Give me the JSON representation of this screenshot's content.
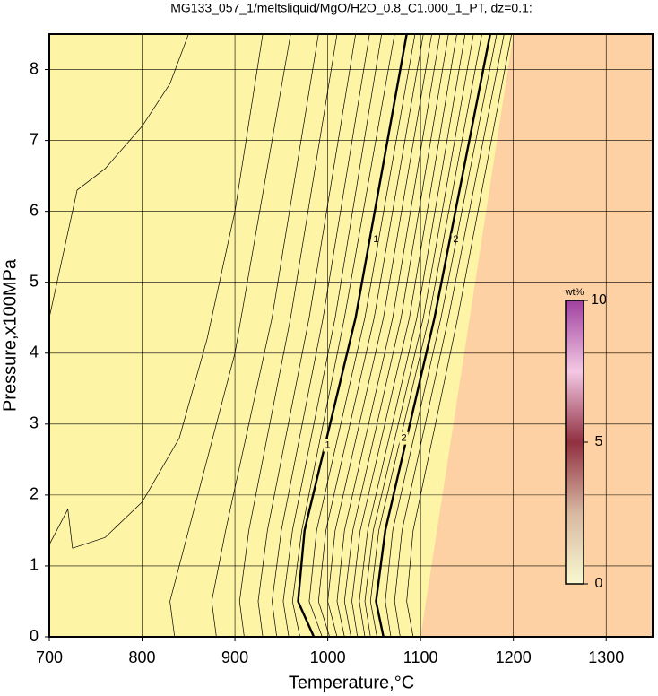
{
  "chart_data": {
    "type": "contour",
    "title": "MG133_057_1/meltsliquid/MgO/H2O_0.8_C1.000_1_PT, dz=0.1:",
    "xlabel": "Temperature,°C",
    "ylabel": "Pressure,x100MPa",
    "xlim": [
      700,
      1350
    ],
    "ylim": [
      0,
      8.5
    ],
    "xticks": [
      700,
      800,
      900,
      1000,
      1100,
      1200,
      1300
    ],
    "yticks": [
      0,
      1,
      2,
      3,
      4,
      5,
      6,
      7,
      8
    ],
    "grid": true,
    "background": "#fdf4a6",
    "region": {
      "color": "#fdd1a3",
      "x": [
        1100,
        1200,
        1350,
        1350
      ],
      "y": [
        0,
        8.5,
        8.5,
        0
      ]
    },
    "series": [
      {
        "level": 0.1,
        "x": [
          700,
          730,
          760,
          800,
          830,
          850
        ],
        "y": [
          4.5,
          6.3,
          6.6,
          7.2,
          7.8,
          8.5
        ]
      },
      {
        "level": 0.2,
        "x": [
          700,
          720,
          725,
          760,
          800,
          840,
          870,
          900,
          930
        ],
        "y": [
          1.3,
          1.8,
          1.25,
          1.4,
          1.9,
          2.8,
          4.2,
          6,
          8.5
        ]
      },
      {
        "level": 0.3,
        "x": [
          835,
          830,
          850,
          900,
          960
        ],
        "y": [
          0,
          0.5,
          1.5,
          4,
          8.5
        ]
      },
      {
        "level": 0.4,
        "x": [
          880,
          875,
          890,
          940,
          990
        ],
        "y": [
          0,
          0.5,
          1.5,
          4.5,
          8.5
        ]
      },
      {
        "level": 0.5,
        "x": [
          910,
          905,
          915,
          960,
          1010
        ],
        "y": [
          0,
          0.5,
          1.5,
          4.5,
          8.5
        ]
      },
      {
        "level": 0.6,
        "x": [
          930,
          925,
          935,
          980,
          1030
        ],
        "y": [
          0,
          0.5,
          1.5,
          4.5,
          8.5
        ]
      },
      {
        "level": 0.7,
        "x": [
          945,
          940,
          950,
          995,
          1045
        ],
        "y": [
          0,
          0.5,
          1.5,
          4.5,
          8.5
        ]
      },
      {
        "level": 0.8,
        "x": [
          958,
          952,
          962,
          1008,
          1058
        ],
        "y": [
          0,
          0.5,
          1.5,
          4.5,
          8.5
        ]
      },
      {
        "level": 0.9,
        "x": [
          970,
          962,
          972,
          1018,
          1072
        ],
        "y": [
          0,
          0.5,
          1.5,
          4.5,
          8.5
        ]
      },
      {
        "level": 1,
        "bold": true,
        "x": [
          985,
          968,
          975,
          1030,
          1085
        ],
        "y": [
          0,
          0.5,
          1.5,
          4.5,
          8.5
        ],
        "label_x": [
          1000,
          1052
        ],
        "label_y": [
          2.7,
          5.6
        ]
      },
      {
        "level": 1.1,
        "x": [
          994,
          980,
          988,
          1040,
          1094
        ],
        "y": [
          0,
          0.5,
          1.5,
          4.5,
          8.5
        ]
      },
      {
        "level": 1.2,
        "x": [
          1002,
          990,
          998,
          1050,
          1103
        ],
        "y": [
          0,
          0.5,
          1.5,
          4.5,
          8.5
        ]
      },
      {
        "level": 1.3,
        "x": [
          1010,
          1000,
          1008,
          1060,
          1112
        ],
        "y": [
          0,
          0.5,
          1.5,
          4.5,
          8.5
        ]
      },
      {
        "level": 1.4,
        "x": [
          1018,
          1010,
          1018,
          1070,
          1121
        ],
        "y": [
          0,
          0.5,
          1.5,
          4.5,
          8.5
        ]
      },
      {
        "level": 1.5,
        "x": [
          1025,
          1018,
          1027,
          1079,
          1130
        ],
        "y": [
          0,
          0.5,
          1.5,
          4.5,
          8.5
        ]
      },
      {
        "level": 1.6,
        "x": [
          1032,
          1026,
          1035,
          1088,
          1139
        ],
        "y": [
          0,
          0.5,
          1.5,
          4.5,
          8.5
        ]
      },
      {
        "level": 1.7,
        "x": [
          1040,
          1034,
          1043,
          1096,
          1148
        ],
        "y": [
          0,
          0.5,
          1.5,
          4.5,
          8.5
        ]
      },
      {
        "level": 1.8,
        "x": [
          1046,
          1040,
          1049,
          1103,
          1157
        ],
        "y": [
          0,
          0.5,
          1.5,
          4.5,
          8.5
        ]
      },
      {
        "level": 1.9,
        "x": [
          1053,
          1046,
          1055,
          1109,
          1166
        ],
        "y": [
          0,
          0.5,
          1.5,
          4.5,
          8.5
        ]
      },
      {
        "level": 2,
        "bold": true,
        "x": [
          1060,
          1052,
          1062,
          1115,
          1175
        ],
        "y": [
          0,
          0.5,
          1.5,
          4.5,
          8.5
        ],
        "label_x": [
          1082,
          1138
        ],
        "label_y": [
          2.8,
          5.6
        ]
      },
      {
        "level": 2.1,
        "x": [
          1068,
          1062,
          1070,
          1122,
          1182
        ],
        "y": [
          0,
          0.5,
          1.5,
          4.5,
          8.5
        ]
      },
      {
        "level": 2.2,
        "x": [
          1078,
          1072,
          1080,
          1130,
          1190
        ],
        "y": [
          0,
          0.5,
          1.5,
          4.5,
          8.5
        ]
      },
      {
        "level": 2.3,
        "x": [
          1092,
          1085,
          1092,
          1140,
          1198
        ],
        "y": [
          0,
          0.5,
          1.5,
          4.5,
          8.5
        ]
      }
    ],
    "colorbar": {
      "label": "wt%",
      "lim": [
        0,
        10
      ],
      "ticks": [
        0,
        5,
        10
      ],
      "colors": [
        "#f8f8d0",
        "#d8b8a0",
        "#903040",
        "#f4c8e4",
        "#a040a0"
      ]
    }
  }
}
